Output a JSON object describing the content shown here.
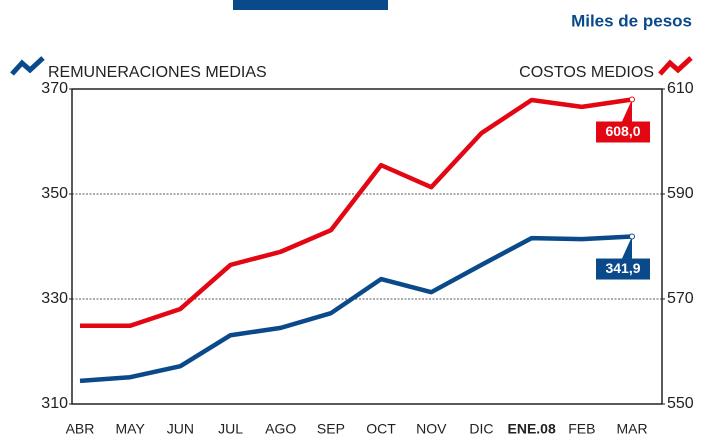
{
  "chart_data": {
    "type": "line",
    "unit_label": "Miles de pesos",
    "categories": [
      "ABR",
      "MAY",
      "JUN",
      "JUL",
      "AGO",
      "SEP",
      "OCT",
      "NOV",
      "DIC",
      "ENE.08",
      "FEB",
      "MAR"
    ],
    "series": [
      {
        "name": "REMUNERACIONES MEDIAS",
        "color": "#0b4a8a",
        "axis": "y",
        "values": [
          314.4,
          315.1,
          317.2,
          323.1,
          324.5,
          327.3,
          333.8,
          331.3,
          336.5,
          341.6,
          341.4,
          341.9
        ],
        "value_labels": [
          null,
          null,
          null,
          null,
          null,
          null,
          null,
          null,
          null,
          null,
          null,
          "341,9"
        ]
      },
      {
        "name": "COSTOS MEDIOS",
        "color": "#e30613",
        "axis": "y2",
        "values": [
          564.9,
          564.9,
          568.1,
          576.5,
          579.0,
          583.1,
          595.5,
          591.3,
          601.6,
          607.9,
          606.6,
          608.0
        ],
        "value_labels": [
          null,
          null,
          null,
          null,
          null,
          null,
          null,
          null,
          null,
          null,
          null,
          "608,0"
        ]
      }
    ],
    "ylim": [
      310,
      370
    ],
    "yticks": [
      310,
      330,
      350,
      370
    ],
    "y2lim": [
      550,
      610
    ],
    "y2ticks": [
      550,
      570,
      590,
      610
    ],
    "grid": true
  }
}
